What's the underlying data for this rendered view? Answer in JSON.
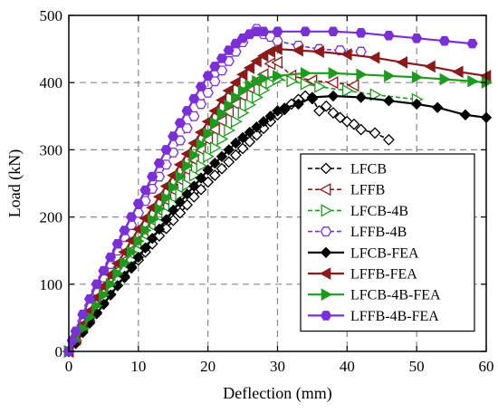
{
  "chart_data": {
    "type": "line",
    "xlabel": "Deflection (mm)",
    "ylabel": "Load (kN)",
    "xlim": [
      0,
      60
    ],
    "ylim": [
      0,
      500
    ],
    "xticks": [
      "0",
      "10",
      "20",
      "30",
      "40",
      "50",
      "60"
    ],
    "yticks": [
      "0",
      "100",
      "200",
      "300",
      "400",
      "500"
    ],
    "grid": true,
    "legend_position": "bottom-right",
    "series": [
      {
        "name": "LFCB",
        "color": "#000000",
        "marker": "diamond-open",
        "dash": true,
        "points": [
          [
            0,
            0
          ],
          [
            1,
            12
          ],
          [
            2,
            30
          ],
          [
            3,
            45
          ],
          [
            4,
            58
          ],
          [
            5,
            72
          ],
          [
            6,
            85
          ],
          [
            7,
            98
          ],
          [
            8,
            110
          ],
          [
            9,
            124
          ],
          [
            10,
            136
          ],
          [
            11,
            148
          ],
          [
            12,
            160
          ],
          [
            13,
            172
          ],
          [
            14,
            183
          ],
          [
            15,
            195
          ],
          [
            16,
            206
          ],
          [
            17,
            218
          ],
          [
            18,
            230
          ],
          [
            19,
            241
          ],
          [
            20,
            252
          ],
          [
            21,
            262
          ],
          [
            22,
            272
          ],
          [
            23,
            282
          ],
          [
            24,
            292
          ],
          [
            25,
            302
          ],
          [
            26,
            312
          ],
          [
            27,
            322
          ],
          [
            28,
            332
          ],
          [
            29,
            342
          ],
          [
            30,
            352
          ],
          [
            31,
            360
          ],
          [
            32,
            368
          ],
          [
            33,
            375
          ],
          [
            34,
            380
          ],
          [
            35,
            376
          ],
          [
            36,
            358
          ],
          [
            37,
            365
          ],
          [
            38,
            355
          ],
          [
            39,
            348
          ],
          [
            40,
            342
          ],
          [
            41,
            338
          ],
          [
            42,
            330
          ],
          [
            44,
            325
          ],
          [
            46,
            315
          ]
        ]
      },
      {
        "name": "LFFB",
        "color": "#8B1A1A",
        "marker": "triangle-left-open",
        "dash": true,
        "points": [
          [
            0,
            0
          ],
          [
            1,
            18
          ],
          [
            2,
            38
          ],
          [
            3,
            55
          ],
          [
            4,
            72
          ],
          [
            5,
            88
          ],
          [
            6,
            104
          ],
          [
            7,
            120
          ],
          [
            8,
            135
          ],
          [
            9,
            150
          ],
          [
            10,
            165
          ],
          [
            11,
            180
          ],
          [
            12,
            195
          ],
          [
            13,
            210
          ],
          [
            14,
            225
          ],
          [
            15,
            240
          ],
          [
            16,
            255
          ],
          [
            17,
            270
          ],
          [
            18,
            285
          ],
          [
            19,
            300
          ],
          [
            20,
            315
          ],
          [
            21,
            330
          ],
          [
            22,
            343
          ],
          [
            23,
            356
          ],
          [
            24,
            368
          ],
          [
            25,
            380
          ],
          [
            26,
            392
          ],
          [
            27,
            402
          ],
          [
            28,
            412
          ],
          [
            29,
            428
          ],
          [
            30,
            430
          ],
          [
            32,
            410
          ],
          [
            35,
            403
          ],
          [
            38,
            400
          ],
          [
            41,
            396
          ]
        ]
      },
      {
        "name": "LFCB-4B",
        "color": "#1E9B1E",
        "marker": "triangle-right-open",
        "dash": true,
        "points": [
          [
            0,
            0
          ],
          [
            1,
            15
          ],
          [
            2,
            33
          ],
          [
            3,
            50
          ],
          [
            4,
            65
          ],
          [
            5,
            80
          ],
          [
            6,
            94
          ],
          [
            7,
            108
          ],
          [
            8,
            122
          ],
          [
            9,
            136
          ],
          [
            10,
            150
          ],
          [
            11,
            164
          ],
          [
            12,
            178
          ],
          [
            13,
            192
          ],
          [
            14,
            206
          ],
          [
            15,
            220
          ],
          [
            16,
            234
          ],
          [
            17,
            248
          ],
          [
            18,
            262
          ],
          [
            19,
            276
          ],
          [
            20,
            290
          ],
          [
            21,
            303
          ],
          [
            22,
            316
          ],
          [
            23,
            329
          ],
          [
            24,
            342
          ],
          [
            25,
            355
          ],
          [
            26,
            367
          ],
          [
            27,
            378
          ],
          [
            28,
            389
          ],
          [
            29,
            399
          ],
          [
            30,
            405
          ],
          [
            32,
            402
          ],
          [
            34,
            398
          ],
          [
            36,
            394
          ],
          [
            40,
            388
          ],
          [
            44,
            382
          ],
          [
            50,
            375
          ]
        ]
      },
      {
        "name": "LFFB-4B",
        "color": "#7B2FD6",
        "marker": "hexagon-open",
        "dash": true,
        "points": [
          [
            0,
            0
          ],
          [
            1,
            22
          ],
          [
            2,
            45
          ],
          [
            3,
            68
          ],
          [
            4,
            90
          ],
          [
            5,
            110
          ],
          [
            6,
            130
          ],
          [
            7,
            150
          ],
          [
            8,
            170
          ],
          [
            9,
            188
          ],
          [
            10,
            206
          ],
          [
            11,
            224
          ],
          [
            12,
            242
          ],
          [
            13,
            260
          ],
          [
            14,
            278
          ],
          [
            15,
            296
          ],
          [
            16,
            314
          ],
          [
            17,
            332
          ],
          [
            18,
            350
          ],
          [
            19,
            368
          ],
          [
            20,
            385
          ],
          [
            21,
            402
          ],
          [
            22,
            418
          ],
          [
            23,
            432
          ],
          [
            24,
            446
          ],
          [
            25,
            460
          ],
          [
            26,
            472
          ],
          [
            27,
            480
          ],
          [
            28,
            472
          ],
          [
            29,
            468
          ],
          [
            30,
            462
          ],
          [
            33,
            455
          ],
          [
            36,
            450
          ],
          [
            39,
            448
          ],
          [
            42,
            446
          ]
        ]
      },
      {
        "name": "LFCB-FEA",
        "color": "#000000",
        "marker": "diamond-filled",
        "dash": false,
        "points": [
          [
            0,
            0
          ],
          [
            1,
            14
          ],
          [
            2,
            28
          ],
          [
            3,
            42
          ],
          [
            4,
            56
          ],
          [
            5,
            70
          ],
          [
            6,
            84
          ],
          [
            7,
            98
          ],
          [
            8,
            112
          ],
          [
            9,
            126
          ],
          [
            10,
            140
          ],
          [
            11,
            154
          ],
          [
            12,
            168
          ],
          [
            13,
            182
          ],
          [
            14,
            196
          ],
          [
            15,
            210
          ],
          [
            16,
            222
          ],
          [
            17,
            234
          ],
          [
            18,
            246
          ],
          [
            19,
            258
          ],
          [
            20,
            270
          ],
          [
            21,
            280
          ],
          [
            22,
            290
          ],
          [
            23,
            300
          ],
          [
            24,
            310
          ],
          [
            25,
            318
          ],
          [
            26,
            326
          ],
          [
            27,
            334
          ],
          [
            28,
            342
          ],
          [
            29,
            350
          ],
          [
            30,
            358
          ],
          [
            31,
            362
          ],
          [
            33,
            368
          ],
          [
            35,
            378
          ],
          [
            38,
            380
          ],
          [
            42,
            378
          ],
          [
            46,
            373
          ],
          [
            50,
            368
          ],
          [
            53,
            363
          ],
          [
            57,
            352
          ],
          [
            60,
            348
          ]
        ]
      },
      {
        "name": "LFFB-FEA",
        "color": "#8B1A1A",
        "marker": "triangle-left-filled",
        "dash": false,
        "points": [
          [
            0,
            0
          ],
          [
            1,
            20
          ],
          [
            2,
            40
          ],
          [
            3,
            60
          ],
          [
            4,
            80
          ],
          [
            5,
            97
          ],
          [
            6,
            114
          ],
          [
            7,
            131
          ],
          [
            8,
            148
          ],
          [
            9,
            165
          ],
          [
            10,
            182
          ],
          [
            11,
            198
          ],
          [
            12,
            214
          ],
          [
            13,
            230
          ],
          [
            14,
            246
          ],
          [
            15,
            262
          ],
          [
            16,
            278
          ],
          [
            17,
            294
          ],
          [
            18,
            310
          ],
          [
            19,
            326
          ],
          [
            20,
            342
          ],
          [
            21,
            358
          ],
          [
            22,
            374
          ],
          [
            23,
            388
          ],
          [
            24,
            400
          ],
          [
            25,
            412
          ],
          [
            26,
            422
          ],
          [
            27,
            432
          ],
          [
            28,
            440
          ],
          [
            29,
            446
          ],
          [
            30,
            450
          ],
          [
            33,
            448
          ],
          [
            36,
            446
          ],
          [
            40,
            442
          ],
          [
            44,
            437
          ],
          [
            48,
            430
          ],
          [
            52,
            424
          ],
          [
            56,
            416
          ],
          [
            60,
            410
          ]
        ]
      },
      {
        "name": "LFCB-4B-FEA",
        "color": "#1E9B1E",
        "marker": "triangle-right-filled",
        "dash": false,
        "points": [
          [
            0,
            0
          ],
          [
            1,
            17
          ],
          [
            2,
            34
          ],
          [
            3,
            51
          ],
          [
            4,
            68
          ],
          [
            5,
            84
          ],
          [
            6,
            100
          ],
          [
            7,
            116
          ],
          [
            8,
            132
          ],
          [
            9,
            148
          ],
          [
            10,
            164
          ],
          [
            11,
            180
          ],
          [
            12,
            196
          ],
          [
            13,
            212
          ],
          [
            14,
            228
          ],
          [
            15,
            244
          ],
          [
            16,
            260
          ],
          [
            17,
            276
          ],
          [
            18,
            292
          ],
          [
            19,
            308
          ],
          [
            20,
            324
          ],
          [
            21,
            340
          ],
          [
            22,
            354
          ],
          [
            23,
            366
          ],
          [
            24,
            378
          ],
          [
            25,
            388
          ],
          [
            26,
            396
          ],
          [
            27,
            402
          ],
          [
            28,
            406
          ],
          [
            30,
            410
          ],
          [
            34,
            414
          ],
          [
            38,
            414
          ],
          [
            42,
            412
          ],
          [
            46,
            410
          ],
          [
            50,
            408
          ],
          [
            54,
            405
          ],
          [
            58,
            402
          ],
          [
            60,
            400
          ]
        ]
      },
      {
        "name": "LFFB-4B-FEA",
        "color": "#7B2FD6",
        "marker": "hexagon-filled",
        "dash": false,
        "points": [
          [
            0,
            0
          ],
          [
            0.5,
            16
          ],
          [
            1,
            30
          ],
          [
            2,
            55
          ],
          [
            3,
            78
          ],
          [
            4,
            100
          ],
          [
            5,
            120
          ],
          [
            6,
            140
          ],
          [
            7,
            160
          ],
          [
            8,
            180
          ],
          [
            9,
            200
          ],
          [
            10,
            220
          ],
          [
            11,
            240
          ],
          [
            12,
            260
          ],
          [
            13,
            280
          ],
          [
            14,
            300
          ],
          [
            15,
            320
          ],
          [
            16,
            340
          ],
          [
            17,
            358
          ],
          [
            18,
            376
          ],
          [
            19,
            394
          ],
          [
            20,
            410
          ],
          [
            21,
            424
          ],
          [
            22,
            436
          ],
          [
            23,
            448
          ],
          [
            24,
            458
          ],
          [
            25,
            466
          ],
          [
            26,
            472
          ],
          [
            27,
            476
          ],
          [
            28,
            476
          ],
          [
            30,
            476
          ],
          [
            34,
            476
          ],
          [
            38,
            476
          ],
          [
            42,
            474
          ],
          [
            46,
            470
          ],
          [
            50,
            466
          ],
          [
            54,
            462
          ],
          [
            58,
            458
          ]
        ]
      }
    ]
  }
}
